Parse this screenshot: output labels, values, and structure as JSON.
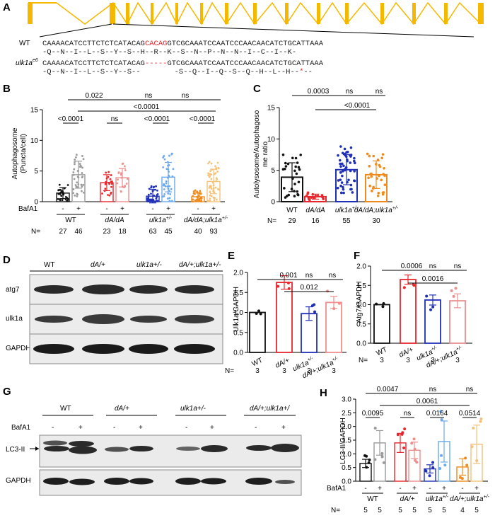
{
  "panels": {
    "A": "A",
    "B": "B",
    "C": "C",
    "D": "D",
    "E": "E",
    "F": "F",
    "G": "G",
    "H": "H"
  },
  "colors": {
    "WT": "#111111",
    "dA": "#e8262d",
    "ulk": "#1f2fb8",
    "dAulk": "#ef8a1c",
    "gene": "#f5b800",
    "WT_bafa": "#9a9a9a",
    "dA_bafa": "#f08d8d",
    "ulk_bafa": "#6aa8ef",
    "dAulk_bafa": "#f6c27a",
    "ctrlF": "#e88f8f"
  },
  "panelA": {
    "wt_label": "WT",
    "mut_label": "ulk1a",
    "mut_sup": "e6",
    "wt_seq_left": "CAAAACATCCTTCTCTCATACAG",
    "wt_seq_red": "CACAG",
    "wt_seq_right": "GTCGCAAATCCAATCCCAACAACATCTGCATTAAA",
    "wt_aa": "-Q--N--I--L--S--Y--S--H--R--K--S--N--P--N--N--I--C--I--K-",
    "mut_seq_left": "CAAAACATCCTTCTCTCATACAG",
    "mut_seq_red": "-----",
    "mut_seq_right": "GTCGCAAATCCAATCCCAACAACATCTGCATTAAA",
    "mut_aa_left": "-Q--N--I--L--S--Y--S--",
    "mut_aa_mid": "-S--Q--I--Q--S--Q--H--L--H--",
    "mut_aa_star": "*",
    "mut_aa_end": "--"
  },
  "chart_data": [
    {
      "id": "B",
      "type": "bar",
      "ylabel_l1": "Autophagosome",
      "ylabel_l2": "(Puncta/cell)",
      "ylim": [
        0,
        15
      ],
      "yticks": [
        "0",
        "5",
        "10",
        "15"
      ],
      "groups": [
        "WT",
        "dA/dA",
        "ulk1a+/-",
        "dA/dA;ulk1a+/-"
      ],
      "bafa_label": "BafA1",
      "bafa_signs": [
        "-",
        "+",
        "-",
        "+",
        "-",
        "+",
        "-",
        "+"
      ],
      "n_label": "N=",
      "n": [
        "27",
        "46",
        "23",
        "18",
        "63",
        "45",
        "40",
        "93"
      ],
      "values": [
        1.4,
        4.4,
        3.1,
        3.9,
        0.9,
        4.0,
        0.8,
        3.3
      ],
      "errors": [
        0.9,
        2.2,
        1.3,
        1.5,
        1.1,
        2.4,
        0.7,
        2.0
      ],
      "stats_top": [
        "0.022",
        "ns",
        "ns"
      ],
      "stats_mid": [
        "<0.0001"
      ],
      "stats_pair": [
        "<0.0001",
        "ns",
        "<0.0001",
        "<0.0001"
      ]
    },
    {
      "id": "C",
      "type": "bar",
      "ylabel_l1": "Autolysosome/Autophagoso",
      "ylabel_l2": "me ratio",
      "ylim": [
        0,
        15
      ],
      "yticks": [
        "0",
        "5",
        "10",
        "15"
      ],
      "groups": [
        "WT",
        "dA/dA",
        "ulk1a+/-",
        "dA/dA;ulk1a+/-"
      ],
      "n_label": "N=",
      "n": [
        "29",
        "16",
        "55",
        "30"
      ],
      "values": [
        3.9,
        0.8,
        5.1,
        4.3
      ],
      "errors": [
        2.3,
        0.4,
        2.4,
        2.2
      ],
      "stats_top": [
        "0.0003",
        "ns",
        "ns"
      ],
      "stats_mid": [
        "<0.0001"
      ]
    },
    {
      "id": "E",
      "type": "bar",
      "ylabel": "Ulk1a/GAPDH",
      "ylim": [
        0,
        2.0
      ],
      "yticks": [
        "0.0",
        "0.5",
        "1.0",
        "1.5",
        "2.0"
      ],
      "groups": [
        "WT",
        "dA/+",
        "ulk1a+/-",
        "dA/+;ulk1a+/-"
      ],
      "n_label": "N=",
      "n": [
        "3",
        "3",
        "3",
        "3"
      ],
      "values": [
        1.0,
        1.75,
        0.97,
        1.25
      ],
      "errors": [
        0.0,
        0.17,
        0.17,
        0.15
      ],
      "stats_top": [
        "0.001",
        "ns",
        "ns"
      ],
      "stats_mid": [
        "0.012"
      ]
    },
    {
      "id": "F",
      "type": "bar",
      "ylabel": "Atg7/GAPDH",
      "ylim": [
        0,
        2.0
      ],
      "yticks": [
        "0.0",
        "0.5",
        "1.0",
        "1.5",
        "2.0"
      ],
      "groups": [
        "WT",
        "dA/+",
        "ulk1a+/-",
        "dA/+;ulk1a+/-"
      ],
      "n_label": "N=",
      "n": [
        "3",
        "3",
        "3",
        "3"
      ],
      "values": [
        1.0,
        1.65,
        1.12,
        1.1
      ],
      "errors": [
        0.0,
        0.12,
        0.13,
        0.18
      ],
      "stats_top": [
        "0.0006",
        "ns",
        "ns"
      ],
      "stats_mid": [
        "0.0016"
      ]
    },
    {
      "id": "H",
      "type": "bar",
      "ylabel": "LC3-II/GAPDH",
      "ylim": [
        0,
        3.0
      ],
      "yticks": [
        "0.0",
        "0.5",
        "1.0",
        "1.5",
        "2.0",
        "2.5",
        "3.0"
      ],
      "groups": [
        "WT",
        "dA/+",
        "ulk1a+/-",
        "dA/+;ulk1a+/-"
      ],
      "bafa_label": "BafA1",
      "bafa_signs": [
        "-",
        "+",
        "-",
        "+",
        "-",
        "+",
        "-",
        "+"
      ],
      "n_label": "N=",
      "n": [
        "5",
        "5",
        "5",
        "5",
        "5",
        "5",
        "4",
        "5"
      ],
      "values": [
        0.65,
        1.4,
        1.4,
        1.13,
        0.45,
        1.45,
        0.52,
        1.35
      ],
      "errors": [
        0.15,
        0.45,
        0.35,
        0.3,
        0.15,
        0.75,
        0.3,
        0.7
      ],
      "stats_top": [
        "0.0047",
        "ns",
        "ns"
      ],
      "stats_mid": [
        "0.0061"
      ],
      "stats_pair": [
        "0.0095",
        "ns",
        "0.0164",
        "0.0514"
      ]
    }
  ],
  "panelD": {
    "lanes": [
      "WT",
      "dA/+",
      "ulk1a+/-",
      "dA/+;ulk1a+/-"
    ],
    "rows": [
      "atg7",
      "ulk1a",
      "GAPDH"
    ]
  },
  "panelG": {
    "groups": [
      "WT",
      "dA/+",
      "ulk1a+/-",
      "dA/+;ulk1a+/"
    ],
    "bafa_label": "BafA1",
    "signs": [
      "-",
      "+",
      "-",
      "+",
      "-",
      "+",
      "-",
      "+"
    ],
    "rows": [
      "LC3-II",
      "GAPDH"
    ]
  }
}
